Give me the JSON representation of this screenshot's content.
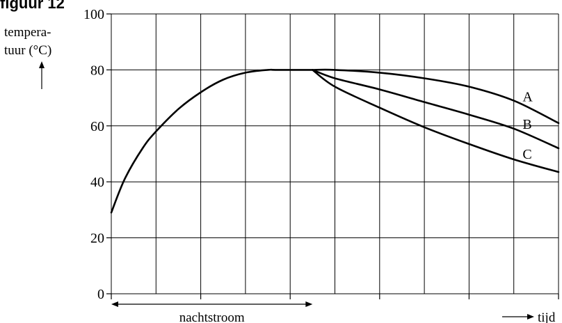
{
  "figure_label": "figuur 12",
  "chart_data": {
    "type": "line",
    "ylabel_line1": "tempera-",
    "ylabel_line2": "tuur (°C)",
    "xlabel": "tijd",
    "ylim": [
      0,
      100
    ],
    "yticks": [
      0,
      20,
      40,
      60,
      80,
      100
    ],
    "xlim": [
      0,
      10
    ],
    "grid": true,
    "annotation": {
      "text": "nachtstroom",
      "x_start": 0,
      "x_end": 4.5
    },
    "rise": {
      "x": [
        0,
        0.3,
        0.7,
        1,
        1.5,
        2,
        2.5,
        3,
        3.5,
        3.7,
        4.5
      ],
      "y": [
        29,
        41,
        52,
        58,
        66,
        72,
        76.5,
        79,
        80,
        80,
        80
      ]
    },
    "series": [
      {
        "name": "A",
        "x": [
          4.5,
          5,
          6,
          7,
          8,
          9,
          10
        ],
        "y": [
          80,
          80,
          79,
          77,
          74,
          69,
          61
        ]
      },
      {
        "name": "B",
        "x": [
          4.5,
          5,
          6,
          7,
          8,
          9,
          10
        ],
        "y": [
          80,
          77,
          73,
          68.5,
          64,
          59,
          52
        ]
      },
      {
        "name": "C",
        "x": [
          4.5,
          5,
          6,
          7,
          8,
          9,
          10
        ],
        "y": [
          80,
          74,
          66.5,
          59.5,
          53.5,
          48,
          43.5
        ]
      }
    ]
  }
}
